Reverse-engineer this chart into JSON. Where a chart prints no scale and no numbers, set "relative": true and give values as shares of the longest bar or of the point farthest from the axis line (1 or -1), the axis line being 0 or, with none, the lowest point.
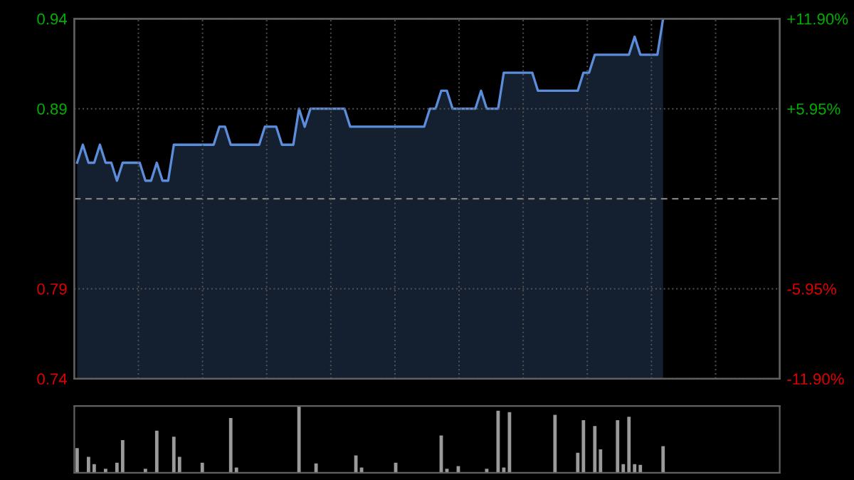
{
  "chart_data": [
    {
      "type": "area",
      "categories": [
        null,
        null,
        null,
        null,
        null,
        null,
        null,
        null,
        null,
        null,
        null,
        null,
        null,
        null,
        null,
        null,
        null,
        null,
        null,
        null,
        null,
        null,
        null,
        null,
        null,
        null,
        null,
        null,
        null,
        null,
        null,
        null,
        null,
        null,
        null,
        null,
        null,
        null,
        null,
        null,
        null,
        null,
        null,
        null,
        null,
        null,
        null,
        null,
        null,
        null,
        null,
        null,
        null,
        null,
        null,
        null,
        null,
        null,
        null,
        null,
        null,
        null,
        null,
        null,
        null,
        null,
        null,
        null,
        null,
        null,
        null,
        null,
        null,
        null,
        null,
        null,
        null,
        null,
        null,
        null,
        null,
        null,
        null,
        null,
        null,
        null,
        null,
        null,
        null,
        null,
        null,
        null,
        null,
        null,
        null,
        null,
        null,
        null,
        null,
        null,
        null,
        null,
        null,
        null,
        null,
        null,
        null,
        null,
        null,
        null,
        null,
        null,
        null,
        null,
        null,
        null,
        null,
        null,
        null,
        null,
        null,
        null,
        null,
        null
      ],
      "series": [
        {
          "color": "#5b8ddb",
          "values": [
            0.86,
            0.87,
            0.86,
            0.86,
            0.87,
            0.86,
            0.86,
            0.85,
            0.86,
            0.86,
            0.86,
            0.86,
            0.85,
            0.85,
            0.86,
            0.85,
            0.85,
            0.87,
            0.87,
            0.87,
            0.87,
            0.87,
            0.87,
            0.87,
            0.87,
            0.88,
            0.88,
            0.87,
            0.87,
            0.87,
            0.87,
            0.87,
            0.87,
            0.88,
            0.88,
            0.88,
            0.87,
            0.87,
            0.87,
            0.89,
            0.88,
            0.89,
            0.89,
            0.89,
            0.89,
            0.89,
            0.89,
            0.89,
            0.88,
            0.88,
            0.88,
            0.88,
            0.88,
            0.88,
            0.88,
            0.88,
            0.88,
            0.88,
            0.88,
            0.88,
            0.88,
            0.88,
            0.89,
            0.89,
            0.9,
            0.9,
            0.89,
            0.89,
            0.89,
            0.89,
            0.89,
            0.9,
            0.89,
            0.89,
            0.89,
            0.91,
            0.91,
            0.91,
            0.91,
            0.91,
            0.91,
            0.9,
            0.9,
            0.9,
            0.9,
            0.9,
            0.9,
            0.9,
            0.9,
            0.91,
            0.91,
            0.92,
            0.92,
            0.92,
            0.92,
            0.92,
            0.92,
            0.92,
            0.93,
            0.92,
            0.92,
            0.92,
            0.92,
            0.94,
            null,
            null,
            null,
            null,
            null,
            null,
            null,
            null,
            null,
            null,
            null,
            null,
            null,
            null,
            null,
            null,
            null,
            null,
            null,
            null
          ]
        }
      ],
      "ylim": [
        0.74,
        0.94
      ],
      "yticks": [
        0.74,
        0.79,
        0.89,
        0.94
      ],
      "y2lim": [
        -11.9,
        11.9
      ],
      "y2ticks": [
        {
          "value": -11.9,
          "label": "-11.90%"
        },
        {
          "value": -5.95,
          "label": "-5.95%"
        },
        {
          "value": 5.95,
          "label": "+5.95%"
        },
        {
          "value": 11.9,
          "label": "+11.90%"
        }
      ],
      "ref_lines": [
        {
          "axis": "y",
          "value": 0.84,
          "color": "#808080",
          "line_style": "dashed"
        }
      ],
      "grid": true,
      "tick_labels": "y"
    },
    {
      "type": "bar",
      "relative": true,
      "categories": [
        null,
        null,
        null,
        null,
        null,
        null,
        null,
        null,
        null,
        null,
        null,
        null,
        null,
        null,
        null,
        null,
        null,
        null,
        null,
        null,
        null,
        null,
        null,
        null,
        null,
        null,
        null,
        null,
        null,
        null,
        null,
        null,
        null,
        null,
        null,
        null,
        null,
        null,
        null,
        null,
        null,
        null,
        null,
        null,
        null,
        null,
        null,
        null,
        null,
        null,
        null,
        null,
        null,
        null,
        null,
        null,
        null,
        null,
        null,
        null,
        null,
        null,
        null,
        null,
        null,
        null,
        null,
        null,
        null,
        null,
        null,
        null,
        null,
        null,
        null,
        null,
        null,
        null,
        null,
        null,
        null,
        null,
        null,
        null,
        null,
        null,
        null,
        null,
        null,
        null,
        null,
        null,
        null,
        null,
        null,
        null,
        null,
        null,
        null,
        null,
        null,
        null,
        null,
        null,
        null,
        null,
        null,
        null,
        null,
        null,
        null,
        null,
        null,
        null,
        null,
        null,
        null,
        null,
        null,
        null,
        null,
        null,
        null,
        null
      ],
      "series": [
        {
          "color": "#9a9a9a",
          "values": [
            0.37,
            null,
            0.24,
            0.13,
            null,
            0.06,
            null,
            0.15,
            0.49,
            null,
            null,
            null,
            0.06,
            null,
            0.63,
            null,
            null,
            0.54,
            0.24,
            null,
            null,
            null,
            0.15,
            null,
            null,
            null,
            null,
            0.82,
            0.08,
            null,
            null,
            null,
            null,
            null,
            null,
            null,
            null,
            null,
            null,
            1.0,
            null,
            null,
            0.14,
            null,
            null,
            null,
            null,
            null,
            null,
            0.26,
            0.08,
            null,
            null,
            null,
            null,
            null,
            0.15,
            null,
            null,
            null,
            null,
            null,
            null,
            null,
            0.56,
            0.06,
            null,
            0.1,
            null,
            null,
            null,
            null,
            0.06,
            null,
            0.93,
            0.08,
            0.91,
            null,
            null,
            null,
            null,
            null,
            null,
            null,
            0.87,
            null,
            null,
            null,
            0.3,
            0.79,
            null,
            0.7,
            0.35,
            null,
            null,
            0.79,
            0.13,
            0.84,
            0.13,
            0.12,
            null,
            null,
            null,
            0.4,
            null,
            null,
            null,
            null,
            null,
            null,
            null,
            null,
            null,
            null,
            null,
            null,
            null,
            null,
            null,
            null,
            null,
            null,
            null,
            null
          ]
        }
      ],
      "tick_labels": false
    }
  ]
}
